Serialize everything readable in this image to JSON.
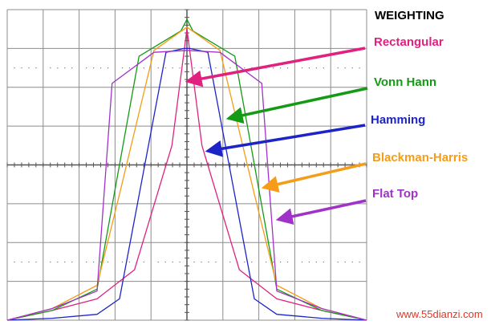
{
  "chart_data": {
    "type": "line",
    "title": "WEIGHTING",
    "xlabel": "",
    "ylabel": "",
    "x": [
      -11,
      -9,
      -7,
      -5,
      -3,
      -1,
      0,
      1,
      3,
      5,
      7,
      9,
      11
    ],
    "ylim": [
      0,
      8
    ],
    "xlim": [
      -12,
      12
    ],
    "grid": true,
    "legend": "right, labels with arrows pointing to curves",
    "series": [
      {
        "name": "Rectangular",
        "color": "#e0217f",
        "x": [
          -12,
          -9,
          -6,
          -3.5,
          -1,
          0,
          1,
          3.5,
          6,
          9,
          12
        ],
        "values": [
          0,
          0.25,
          0.55,
          1.3,
          4.5,
          7.5,
          4.5,
          1.3,
          0.55,
          0.25,
          0
        ]
      },
      {
        "name": "Vonn Hann",
        "color": "#149a14",
        "x": [
          -12,
          -9,
          -6,
          -3.2,
          -0.4,
          0,
          0.4,
          3.2,
          6,
          9,
          12
        ],
        "values": [
          0,
          0.25,
          0.8,
          6.8,
          7.45,
          7.75,
          7.45,
          6.8,
          0.8,
          0.25,
          0
        ]
      },
      {
        "name": "Hamming",
        "color": "#1c24c8",
        "x": [
          -12,
          -9,
          -6,
          -4.5,
          -1.4,
          -0.2,
          0.2,
          1.4,
          4.5,
          6,
          9,
          12
        ],
        "values": [
          0,
          0.05,
          0.15,
          0.55,
          6.9,
          7.0,
          7.0,
          6.9,
          0.55,
          0.15,
          0.05,
          0
        ]
      },
      {
        "name": "Blackman-Harris",
        "color": "#f59c18",
        "x": [
          -12,
          -9,
          -6,
          -4.5,
          -2.2,
          0,
          2.2,
          4.5,
          6,
          9,
          12
        ],
        "values": [
          0,
          0.3,
          0.9,
          3.25,
          6.95,
          7.55,
          6.95,
          3.25,
          0.9,
          0.3,
          0
        ]
      },
      {
        "name": "Flat Top",
        "color": "#a032c8",
        "x": [
          -12,
          -9,
          -6,
          -5,
          -2.2,
          0,
          2.2,
          5,
          6,
          9,
          12
        ],
        "values": [
          0,
          0.3,
          0.75,
          6.1,
          6.9,
          6.95,
          6.9,
          6.1,
          0.75,
          0.3,
          0
        ]
      }
    ]
  },
  "legend": {
    "title": "WEIGHTING",
    "items": [
      {
        "label": "Rectangular",
        "color": "#e0217f"
      },
      {
        "label": "Vonn Hann",
        "color": "#149a14"
      },
      {
        "label": "Hamming",
        "color": "#1c24c8"
      },
      {
        "label": "Blackman-Harris",
        "color": "#f59c18"
      },
      {
        "label": "Flat Top",
        "color": "#a032c8"
      }
    ]
  },
  "watermark": "www.55dianzi.com"
}
